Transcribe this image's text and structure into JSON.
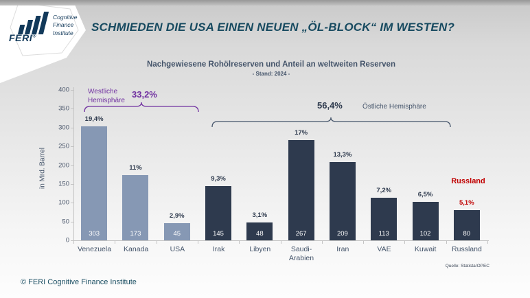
{
  "header": {
    "title": "SCHMIEDEN DIE USA EINEN NEUEN „ÖL-BLOCK“ IM WESTEN?",
    "logo": {
      "brand": "FERI",
      "registered": "®",
      "tagline": [
        "Cognitive",
        "Finance",
        "Institute"
      ]
    }
  },
  "chart_data": {
    "type": "bar",
    "title": "Nachgewiesene Rohölreserven und Anteil an weltweiten Reserven",
    "subtitle": "- Stand: 2024 -",
    "ylabel": "in Mrd. Barrel",
    "ylim": [
      0,
      400
    ],
    "ytick_step": 50,
    "grid": false,
    "categories": [
      "Venezuela",
      "Kanada",
      "USA",
      "Irak",
      "Libyen",
      "Saudi-Arabien",
      "Iran",
      "VAE",
      "Kuwait",
      "Russland"
    ],
    "values": [
      303,
      173,
      45,
      145,
      48,
      267,
      209,
      113,
      102,
      80
    ],
    "share_labels": [
      "19,4%",
      "11%",
      "2,9%",
      "9,3%",
      "3,1%",
      "17%",
      "13,3%",
      "7,2%",
      "6,5%",
      "5,1%"
    ],
    "groups": [
      "west",
      "west",
      "west",
      "east",
      "east",
      "east",
      "east",
      "east",
      "east",
      "russia"
    ],
    "annotations": {
      "west": {
        "label": "Westliche Hemisphäre",
        "share": "33,2%"
      },
      "east": {
        "label": "Östliche Hemisphäre",
        "share": "56,4%"
      },
      "russia": {
        "label": "Russland"
      }
    },
    "source": "Quelle: Statista/OPEC"
  },
  "footer": {
    "copyright": "© FERI Cognitive Finance Institute"
  },
  "colors": {
    "bar_west": "#8698b4",
    "bar_east": "#2e3a4e",
    "bar_russia": "#2e3a4e",
    "share_west": "#2f3b4e",
    "share_east": "#2f3b4e",
    "share_russia": "#c00000",
    "accent_purple": "#7030a0",
    "accent_red": "#c00000",
    "title_blue": "#174a60",
    "chart_text": "#44546a"
  }
}
